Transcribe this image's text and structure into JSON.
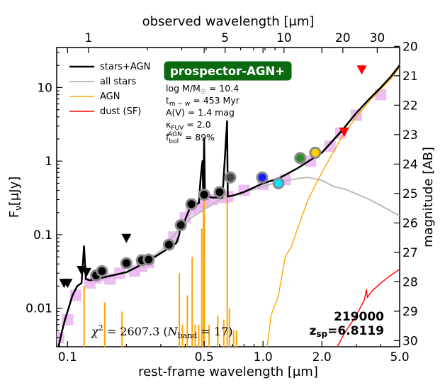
{
  "chart_data": {
    "type": "line",
    "badge": "prospector-AGN+",
    "x_bottom_label": "rest-frame wavelength [μm]",
    "x_top_label": "observed wavelength [μm]",
    "y_left_label": "Fν[μJy]",
    "y_right_label": "magnitude [AB]",
    "xlim": [
      0.088,
      5.0
    ],
    "ylim": [
      0.003,
      35
    ],
    "redshift": 6.8119,
    "bottom_ticks": [
      {
        "v": 0.1,
        "label": "0.1"
      },
      {
        "v": 0.5,
        "label": "0.5"
      },
      {
        "v": 1.0,
        "label": "1.0"
      },
      {
        "v": 2.0,
        "label": "2.0"
      },
      {
        "v": 5.0,
        "label": "5.0"
      }
    ],
    "top_ticks": [
      {
        "v": 1,
        "label": "1"
      },
      {
        "v": 5,
        "label": "5"
      },
      {
        "v": 10,
        "label": "10"
      },
      {
        "v": 20,
        "label": "20"
      },
      {
        "v": 30,
        "label": "30"
      }
    ],
    "left_ticks": [
      {
        "v": 0.01,
        "label": "0.01"
      },
      {
        "v": 0.1,
        "label": "0.1"
      },
      {
        "v": 1,
        "label": "1"
      },
      {
        "v": 10,
        "label": "10"
      }
    ],
    "right_ticks": [
      {
        "v": 20,
        "label": "20"
      },
      {
        "v": 21,
        "label": "21"
      },
      {
        "v": 22,
        "label": "22"
      },
      {
        "v": 23,
        "label": "23"
      },
      {
        "v": 24,
        "label": "24"
      },
      {
        "v": 25,
        "label": "25"
      },
      {
        "v": 26,
        "label": "26"
      },
      {
        "v": 27,
        "label": "27"
      },
      {
        "v": 28,
        "label": "28"
      },
      {
        "v": 29,
        "label": "29"
      },
      {
        "v": 30,
        "label": "30"
      }
    ],
    "legend": [
      {
        "label": "stars+AGN",
        "color": "#000000"
      },
      {
        "label": "all stars",
        "color": "#bbbbbb"
      },
      {
        "label": "AGN",
        "color": "#ffa500"
      },
      {
        "label": "dust (SF)",
        "color": "#ff0000"
      }
    ],
    "params": {
      "mass": "log M/M☉ = 10.4",
      "age": "tm−w = 453 Myr",
      "av": "A(V) = 1.4 mag",
      "kappa": "κFUV = 2.0",
      "fagn": "fAGNbol = 89%"
    },
    "object_id": "219000",
    "redshift_label": "zsp=6.8119",
    "chi2_label": "χ2 = 2607.3 (Nband = 17)",
    "series": [
      {
        "name": "stars+AGN",
        "color": "#000000",
        "points": [
          [
            0.09,
            0.003
          ],
          [
            0.093,
            0.0045
          ],
          [
            0.097,
            0.007
          ],
          [
            0.1,
            0.009
          ],
          [
            0.106,
            0.015
          ],
          [
            0.112,
            0.02
          ],
          [
            0.118,
            0.022
          ],
          [
            0.1215,
            0.07
          ],
          [
            0.124,
            0.025
          ],
          [
            0.13,
            0.024
          ],
          [
            0.14,
            0.025
          ],
          [
            0.16,
            0.027
          ],
          [
            0.18,
            0.029
          ],
          [
            0.2,
            0.031
          ],
          [
            0.22,
            0.035
          ],
          [
            0.25,
            0.042
          ],
          [
            0.28,
            0.05
          ],
          [
            0.3,
            0.056
          ],
          [
            0.33,
            0.066
          ],
          [
            0.36,
            0.077
          ],
          [
            0.373,
            0.1
          ],
          [
            0.38,
            0.15
          ],
          [
            0.39,
            0.13
          ],
          [
            0.4,
            0.16
          ],
          [
            0.41,
            0.19
          ],
          [
            0.42,
            0.22
          ],
          [
            0.43,
            0.24
          ],
          [
            0.45,
            0.25
          ],
          [
            0.47,
            0.27
          ],
          [
            0.48,
            0.6
          ],
          [
            0.49,
            1.0
          ],
          [
            0.495,
            0.35
          ],
          [
            0.5,
            2.0
          ],
          [
            0.505,
            0.3
          ],
          [
            0.52,
            0.33
          ],
          [
            0.55,
            0.32
          ],
          [
            0.6,
            0.32
          ],
          [
            0.62,
            0.32
          ],
          [
            0.655,
            3.5
          ],
          [
            0.66,
            0.33
          ],
          [
            0.7,
            0.34
          ],
          [
            0.8,
            0.38
          ],
          [
            1.0,
            0.5
          ],
          [
            1.2,
            0.58
          ],
          [
            1.5,
            0.8
          ],
          [
            2.0,
            1.3
          ],
          [
            2.5,
            2.5
          ],
          [
            3.0,
            4.5
          ],
          [
            3.5,
            7.0
          ],
          [
            4.0,
            10.0
          ],
          [
            4.5,
            14.0
          ],
          [
            5.0,
            20.0
          ]
        ]
      },
      {
        "name": "all stars",
        "color": "#bbbbbb",
        "points": [
          [
            0.2,
            0.03
          ],
          [
            0.3,
            0.06
          ],
          [
            0.4,
            0.15
          ],
          [
            0.6,
            0.3
          ],
          [
            0.8,
            0.38
          ],
          [
            1.0,
            0.45
          ],
          [
            1.2,
            0.52
          ],
          [
            1.5,
            0.58
          ],
          [
            1.7,
            0.6
          ],
          [
            2.0,
            0.55
          ],
          [
            2.3,
            0.45
          ],
          [
            2.6,
            0.42
          ],
          [
            3.0,
            0.36
          ],
          [
            3.5,
            0.3
          ],
          [
            4.0,
            0.25
          ],
          [
            4.5,
            0.21
          ],
          [
            5.0,
            0.18
          ]
        ]
      },
      {
        "name": "AGN",
        "color": "#ffa500",
        "points": [
          [
            1.05,
            0.003
          ],
          [
            1.1,
            0.008
          ],
          [
            1.2,
            0.015
          ],
          [
            1.3,
            0.05
          ],
          [
            1.4,
            0.07
          ],
          [
            1.5,
            0.12
          ],
          [
            1.7,
            0.3
          ],
          [
            2.0,
            0.7
          ],
          [
            2.5,
            2.0
          ],
          [
            3.0,
            4.0
          ],
          [
            3.5,
            6.5
          ],
          [
            4.0,
            9.5
          ],
          [
            4.5,
            13.0
          ],
          [
            5.0,
            19.0
          ]
        ]
      },
      {
        "name": "dust (SF)",
        "color": "#ff0000",
        "points": [
          [
            2.4,
            0.003
          ],
          [
            2.6,
            0.0045
          ],
          [
            3.0,
            0.008
          ],
          [
            3.3,
            0.013
          ],
          [
            3.38,
            0.018
          ],
          [
            3.42,
            0.014
          ],
          [
            3.6,
            0.017
          ],
          [
            4.0,
            0.022
          ],
          [
            4.5,
            0.028
          ],
          [
            5.0,
            0.034
          ]
        ]
      }
    ],
    "agn_lines": [
      {
        "x": 0.1216,
        "y": 0.02
      },
      {
        "x": 0.155,
        "y": 0.012
      },
      {
        "x": 0.19,
        "y": 0.009
      },
      {
        "x": 0.373,
        "y": 0.03
      },
      {
        "x": 0.387,
        "y": 0.006
      },
      {
        "x": 0.41,
        "y": 0.015
      },
      {
        "x": 0.434,
        "y": 0.05
      },
      {
        "x": 0.45,
        "y": 0.006
      },
      {
        "x": 0.469,
        "y": 0.006
      },
      {
        "x": 0.486,
        "y": 0.12
      },
      {
        "x": 0.496,
        "y": 0.25
      },
      {
        "x": 0.501,
        "y": 0.3
      },
      {
        "x": 0.53,
        "y": 0.006
      },
      {
        "x": 0.587,
        "y": 0.008
      },
      {
        "x": 0.63,
        "y": 0.007
      },
      {
        "x": 0.656,
        "y": 0.35
      },
      {
        "x": 0.673,
        "y": 0.01
      },
      {
        "x": 0.707,
        "y": 0.005
      },
      {
        "x": 0.732,
        "y": 0.005
      }
    ],
    "model_photometry": [
      [
        0.09,
        0.004
      ],
      [
        0.1,
        0.007
      ],
      [
        0.11,
        0.015
      ],
      [
        0.13,
        0.022
      ],
      [
        0.14,
        0.026
      ],
      [
        0.15,
        0.028
      ],
      [
        0.165,
        0.025
      ],
      [
        0.185,
        0.03
      ],
      [
        0.22,
        0.032
      ],
      [
        0.24,
        0.037
      ],
      [
        0.26,
        0.042
      ],
      [
        0.35,
        0.093
      ],
      [
        0.4,
        0.17
      ],
      [
        0.43,
        0.22
      ],
      [
        0.47,
        0.24
      ],
      [
        0.5,
        0.28
      ],
      [
        0.55,
        0.3
      ],
      [
        0.63,
        0.32
      ],
      [
        0.66,
        0.33
      ],
      [
        0.8,
        0.4
      ],
      [
        1.0,
        0.48
      ],
      [
        1.3,
        0.56
      ],
      [
        1.75,
        1.0
      ],
      [
        2.2,
        1.6
      ],
      [
        2.5,
        2.4
      ],
      [
        3.0,
        4.2
      ],
      [
        4.0,
        8.0
      ]
    ],
    "observed_photometry": [
      {
        "x": 0.14,
        "y": 0.028,
        "color": "#000000"
      },
      {
        "x": 0.15,
        "y": 0.032,
        "color": "#000000"
      },
      {
        "x": 0.2,
        "y": 0.041,
        "color": "#000000"
      },
      {
        "x": 0.24,
        "y": 0.045,
        "color": "#000000"
      },
      {
        "x": 0.26,
        "y": 0.046,
        "color": "#000000"
      },
      {
        "x": 0.33,
        "y": 0.073,
        "color": "#000000"
      },
      {
        "x": 0.38,
        "y": 0.135,
        "color": "#111111"
      },
      {
        "x": 0.43,
        "y": 0.26,
        "color": "#000000"
      },
      {
        "x": 0.5,
        "y": 0.35,
        "color": "#000000"
      },
      {
        "x": 0.6,
        "y": 0.38,
        "color": "#000000"
      },
      {
        "x": 0.68,
        "y": 0.6,
        "color": "#444444"
      },
      {
        "x": 0.99,
        "y": 0.6,
        "color": "#1a1aff"
      },
      {
        "x": 1.2,
        "y": 0.5,
        "color": "#00e5ff"
      },
      {
        "x": 1.55,
        "y": 1.1,
        "color": "#2e8b2e"
      },
      {
        "x": 1.85,
        "y": 1.3,
        "color": "#ffd000"
      }
    ],
    "upper_limits": [
      {
        "x": 0.096,
        "y": 0.022,
        "color": "#000000"
      },
      {
        "x": 0.1,
        "y": 0.022,
        "color": "#000000"
      },
      {
        "x": 0.118,
        "y": 0.033,
        "color": "#000000"
      },
      {
        "x": 0.125,
        "y": 0.031,
        "color": "#000000"
      },
      {
        "x": 0.2,
        "y": 0.09,
        "color": "#000000"
      },
      {
        "x": 2.6,
        "y": 2.5,
        "color": "#ff0000"
      },
      {
        "x": 3.2,
        "y": 17.5,
        "color": "#ff0000"
      }
    ]
  }
}
